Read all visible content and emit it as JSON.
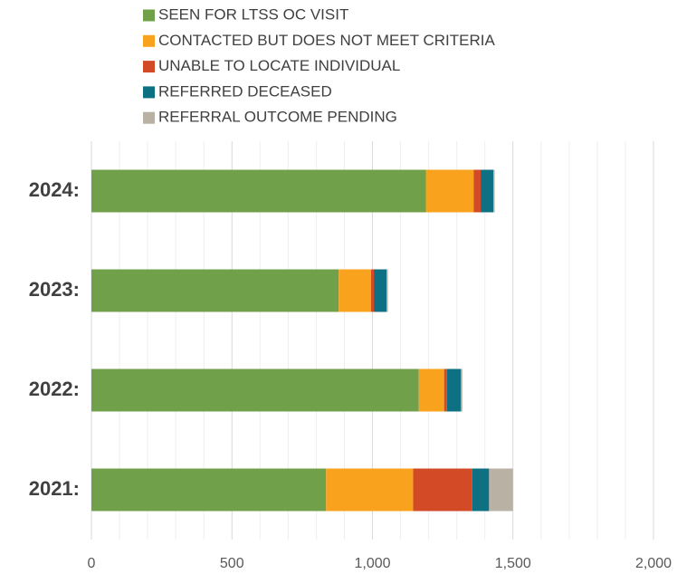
{
  "chart_data": {
    "type": "stacked_barh",
    "categories": [
      "2024:",
      "2023:",
      "2022:",
      "2021:"
    ],
    "series": [
      {
        "name": "SEEN FOR LTSS OC VISIT",
        "color": "#70a04a",
        "values": [
          1190,
          880,
          1165,
          835
        ]
      },
      {
        "name": "CONTACTED BUT DOES NOT MEET CRITERIA",
        "color": "#f9a21d",
        "values": [
          170,
          115,
          90,
          310
        ]
      },
      {
        "name": "UNABLE TO LOCATE INDIVIDUAL",
        "color": "#d24a26",
        "values": [
          25,
          10,
          10,
          210
        ]
      },
      {
        "name": "REFERRED DECEASED",
        "color": "#0d7183",
        "values": [
          45,
          45,
          50,
          60
        ]
      },
      {
        "name": "REFERRAL OUTCOME PENDING",
        "color": "#b8b1a4",
        "values": [
          5,
          5,
          5,
          85
        ]
      }
    ],
    "xlim": [
      0,
      2000
    ],
    "xticks": [
      0,
      500,
      {
        "value": 1000,
        "label": "1,000"
      },
      {
        "value": 1500,
        "label": "1,500"
      },
      {
        "value": 2000,
        "label": "2,000"
      }
    ],
    "xminor_ticks": [
      100,
      200,
      300,
      400,
      600,
      700,
      800,
      900,
      1100,
      1200,
      1300,
      1400,
      1600,
      1700,
      1800,
      1900
    ],
    "grid": true,
    "legend": "top"
  }
}
